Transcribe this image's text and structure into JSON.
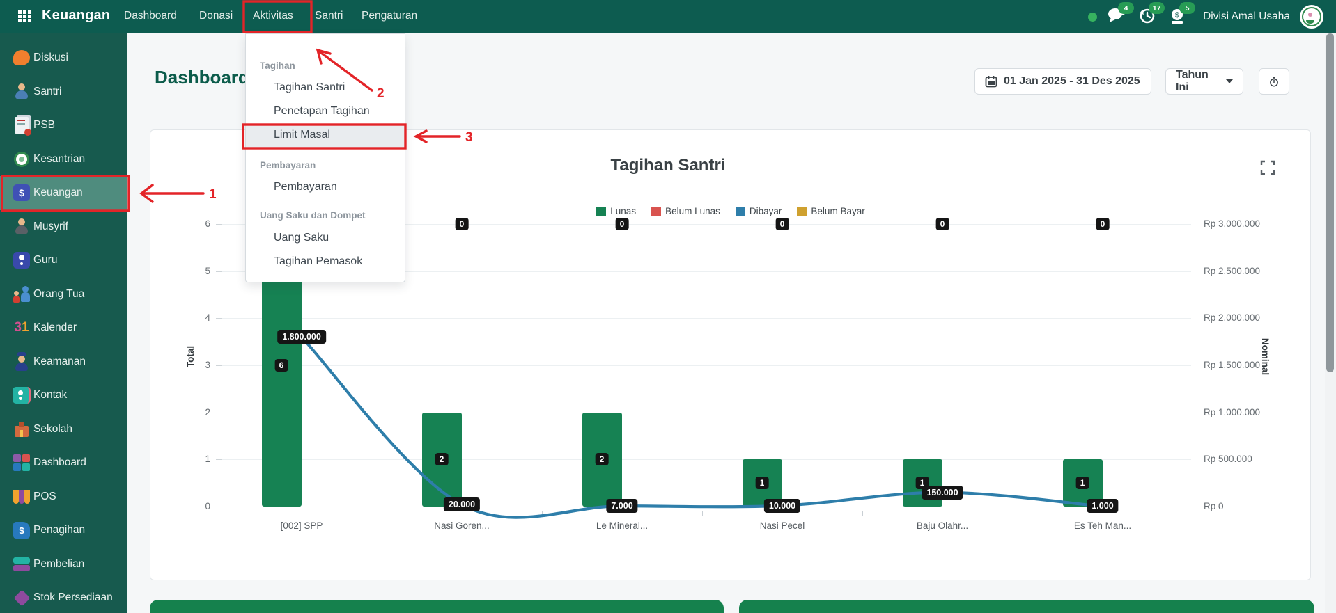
{
  "colors": {
    "annotation_red": "#e32428",
    "navbar_bg": "#0d5c50",
    "sidebar_bg": "#175a4e",
    "active_item_bg": "#4f8c7e",
    "bar_green": "#168253",
    "line_blue": "#2e7eaa",
    "brand_title_teal": "#0c5c4b"
  },
  "navbar": {
    "brand": "Keuangan",
    "items": [
      {
        "label": "Dashboard",
        "highlighted": false
      },
      {
        "label": "Donasi",
        "highlighted": false
      },
      {
        "label": "Aktivitas",
        "highlighted": true
      },
      {
        "label": "Santri",
        "highlighted": false
      },
      {
        "label": "Pengaturan",
        "highlighted": false
      }
    ],
    "right": {
      "chat_count": "4",
      "history_count": "17",
      "cash_count": "5",
      "division": "Divisi Amal Usaha"
    }
  },
  "sidebar": {
    "items": [
      {
        "label": "Diskusi",
        "icon": "discussion-icon",
        "active": false
      },
      {
        "label": "Santri",
        "icon": "student-icon",
        "active": false
      },
      {
        "label": "PSB",
        "icon": "documents-icon",
        "active": false
      },
      {
        "label": "Kesantrian",
        "icon": "pesantren-logo-icon",
        "active": false
      },
      {
        "label": "Keuangan",
        "icon": "finance-icon",
        "active": true
      },
      {
        "label": "Musyrif",
        "icon": "mentor-icon",
        "active": false
      },
      {
        "label": "Guru",
        "icon": "teacher-icon",
        "active": false
      },
      {
        "label": "Orang Tua",
        "icon": "parents-icon",
        "active": false
      },
      {
        "label": "Kalender",
        "icon": "calendar-31-icon",
        "active": false
      },
      {
        "label": "Keamanan",
        "icon": "security-icon",
        "active": false
      },
      {
        "label": "Kontak",
        "icon": "contact-icon",
        "active": false
      },
      {
        "label": "Sekolah",
        "icon": "school-icon",
        "active": false
      },
      {
        "label": "Dashboard",
        "icon": "dashboard-tiles-icon",
        "active": false
      },
      {
        "label": "POS",
        "icon": "pos-awning-icon",
        "active": false
      },
      {
        "label": "Penagihan",
        "icon": "billing-icon",
        "active": false
      },
      {
        "label": "Pembelian",
        "icon": "purchase-icon",
        "active": false
      },
      {
        "label": "Stok Persediaan",
        "icon": "stock-box-icon",
        "active": false
      }
    ]
  },
  "page": {
    "title": "Dashboard"
  },
  "toolbar": {
    "date_range": "01 Jan 2025 - 31 Des 2025",
    "period": "Tahun Ini"
  },
  "activity_menu": {
    "sections": [
      {
        "header": "Tagihan",
        "items": [
          {
            "label": "Tagihan Santri",
            "highlighted": false
          },
          {
            "label": "Penetapan Tagihan",
            "highlighted": false
          },
          {
            "label": "Limit Masal",
            "highlighted": true
          }
        ]
      },
      {
        "header": "Pembayaran",
        "items": [
          {
            "label": "Pembayaran",
            "highlighted": false
          }
        ]
      },
      {
        "header": "Uang Saku dan Dompet",
        "items": [
          {
            "label": "Uang Saku",
            "highlighted": false
          },
          {
            "label": "Tagihan Pemasok",
            "highlighted": false
          }
        ]
      }
    ]
  },
  "annotations": {
    "step1": "1",
    "step2": "2",
    "step3": "3"
  },
  "chart_data": {
    "type": "bar",
    "title": "Tagihan Santri",
    "legend_position": "top",
    "grid": true,
    "legend": [
      {
        "label": "Lunas",
        "color": "#168253"
      },
      {
        "label": "Belum Lunas",
        "color": "#d9534f"
      },
      {
        "label": "Dibayar",
        "color": "#2e7eaa"
      },
      {
        "label": "Belum Bayar",
        "color": "#cfa12f"
      }
    ],
    "categories": [
      "[002] SPP",
      "Nasi Goren...",
      "Le Mineral...",
      "Nasi Pecel",
      "Baju Olahr...",
      "Es Teh Man..."
    ],
    "series": [
      {
        "name": "Lunas",
        "type": "bar",
        "axis": "left",
        "values": [
          6,
          2,
          2,
          1,
          1,
          1
        ],
        "count_labels": [
          "6",
          "2",
          "2",
          "1",
          "1",
          "1"
        ]
      },
      {
        "name": "Belum Lunas",
        "type": "bar",
        "axis": "left",
        "values": [
          0,
          0,
          0,
          0,
          0,
          0
        ],
        "zero_labels_at_top": [
          "0",
          "0",
          "0",
          "0",
          "0",
          "0"
        ]
      },
      {
        "name": "Nominal",
        "type": "line",
        "axis": "right",
        "values": [
          1800000,
          20000,
          7000,
          10000,
          150000,
          1000
        ],
        "value_labels": [
          "1.800.000",
          "20.000",
          "7.000",
          "10.000",
          "150.000",
          "1.000"
        ]
      }
    ],
    "left_axis": {
      "title": "Total",
      "min": 0,
      "max": 6,
      "ticks": [
        "6",
        "5",
        "4",
        "3",
        "2",
        "1",
        "0"
      ]
    },
    "right_axis": {
      "title": "Nominal",
      "min": 0,
      "max": 3000000,
      "ticks": [
        "Rp 3.000.000",
        "Rp 2.500.000",
        "Rp 2.000.000",
        "Rp 1.500.000",
        "Rp 1.000.000",
        "Rp 500.000",
        "Rp 0"
      ]
    }
  }
}
